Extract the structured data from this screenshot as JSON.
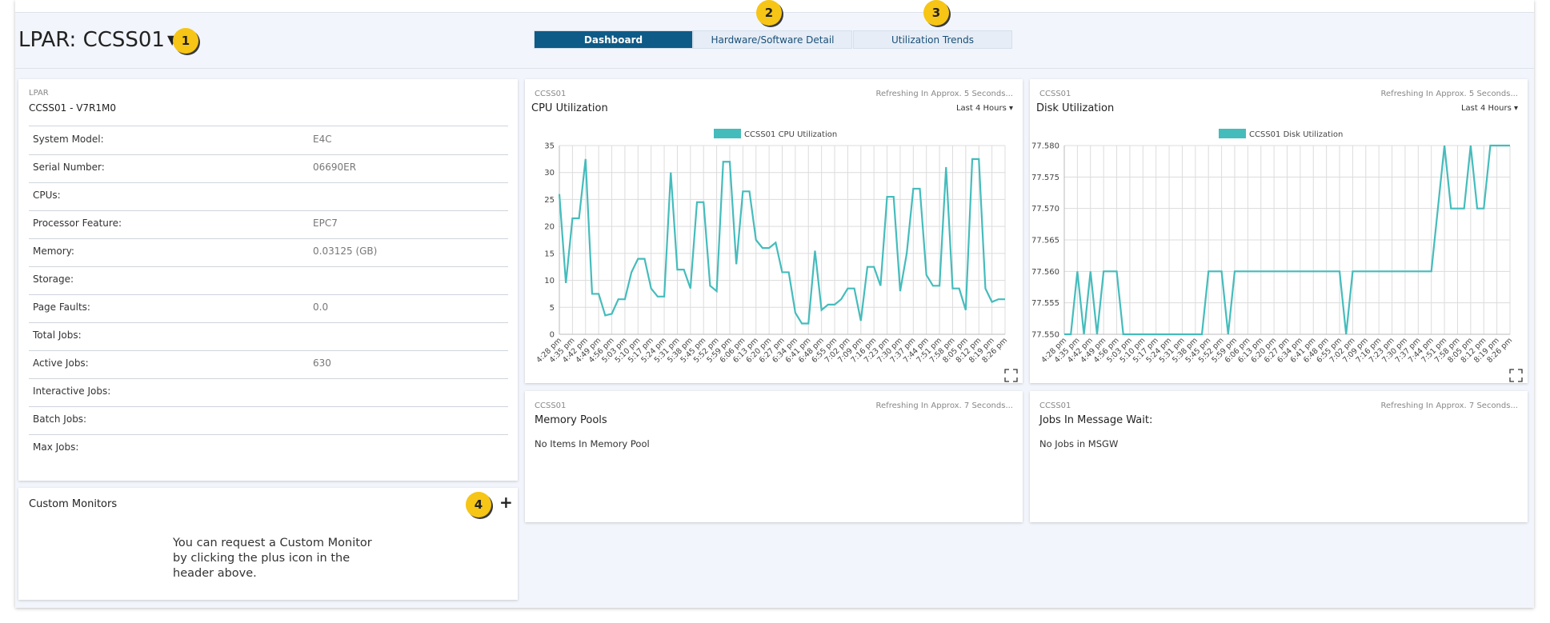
{
  "header": {
    "title": "LPAR: CCSS01",
    "tabs": [
      "Dashboard",
      "Hardware/Software Detail",
      "Utilization Trends"
    ],
    "callouts": [
      "1",
      "2",
      "3",
      "4"
    ]
  },
  "lpar": {
    "label": "LPAR",
    "name": "CCSS01 - V7R1M0",
    "rows": [
      {
        "label": "System Model:",
        "value": "E4C"
      },
      {
        "label": "Serial Number:",
        "value": "06690ER"
      },
      {
        "label": "CPUs:"
      },
      {
        "label": "Processor Feature:",
        "value": "EPC7"
      },
      {
        "label": "Memory:",
        "value": "0.03125 (GB)"
      },
      {
        "label": "Storage:"
      },
      {
        "label": "Page Faults:",
        "value": "0.0"
      },
      {
        "label": "Total Jobs:"
      },
      {
        "label": "Active Jobs:",
        "value": 630
      },
      {
        "label": "Interactive Jobs:"
      },
      {
        "label": "Batch Jobs:"
      },
      {
        "label": "Max Jobs:"
      }
    ]
  },
  "custom": {
    "title": "Custom Monitors",
    "lines": [
      "You can request a Custom Monitor",
      "by clicking the plus icon in the",
      "header above."
    ]
  },
  "cards": [
    {
      "system": "CCSS01",
      "refresh": "Refreshing In Approx. 5 Seconds...",
      "range": "Last 4 Hours"
    },
    {
      "system": "CCSS01",
      "refresh": "Refreshing In Approx. 5 Seconds...",
      "range": "Last 4 Hours"
    },
    {
      "system": "CCSS01",
      "refresh": "Refreshing In Approx. 7 Seconds...",
      "title": "Memory Pools",
      "message": "No Items In Memory Pool"
    },
    {
      "system": "CCSS01",
      "refresh": "Refreshing In Approx. 7 Seconds...",
      "title": "Jobs In Message Wait:",
      "message": "No Jobs in MSGW"
    }
  ],
  "chart_data": [
    {
      "type": "line",
      "title": "CPU Utilization",
      "categories": [
        "4:28 pm",
        null,
        "4:35 pm",
        null,
        "4:42 pm",
        null,
        "4:49 pm",
        null,
        "4:56 pm",
        null,
        "5:03 pm",
        null,
        "5:10 pm",
        null,
        "5:17 pm",
        null,
        "5:24 pm",
        null,
        "5:31 pm",
        null,
        "5:38 pm",
        null,
        "5:45 pm",
        null,
        "5:52 pm",
        null,
        "5:59 pm",
        null,
        "6:06 pm",
        null,
        "6:13 pm",
        null,
        "6:20 pm",
        null,
        "6:27 pm",
        null,
        "6:34 pm",
        null,
        "6:41 pm",
        null,
        "6:48 pm",
        null,
        "6:55 pm",
        null,
        "7:02 pm",
        null,
        "7:09 pm",
        null,
        "7:16 pm",
        null,
        "7:23 pm",
        null,
        "7:30 pm",
        null,
        "7:37 pm",
        null,
        "7:44 pm",
        null,
        "7:51 pm",
        null,
        "7:58 pm",
        null,
        "8:05 pm",
        null,
        "8:12 pm",
        null,
        "8:19 pm",
        null,
        "8:26 pm"
      ],
      "series": [
        {
          "name": "CCSS01 CPU Utilization",
          "color": "#45bcbc",
          "values": [
            26,
            9.5,
            21.5,
            21.5,
            32.5,
            7.5,
            7.5,
            3.5,
            3.8,
            6.5,
            6.5,
            11.5,
            14,
            14,
            8.5,
            7,
            7,
            30,
            12,
            12,
            8.5,
            24.5,
            24.5,
            9,
            8,
            32,
            32,
            13,
            26.5,
            26.5,
            17.5,
            16,
            16,
            17,
            11.5,
            11.5,
            4,
            2,
            2,
            15.5,
            4.5,
            5.5,
            5.5,
            6.5,
            8.5,
            8.5,
            2.5,
            12.5,
            12.5,
            9,
            25.5,
            25.5,
            8,
            15,
            27,
            27,
            11,
            9,
            9,
            31,
            8.5,
            8.5,
            4.5,
            32.5,
            32.5,
            8.5,
            6,
            6.5,
            6.5
          ]
        }
      ],
      "ylim": [
        0,
        35
      ],
      "yticks": [
        0,
        5,
        10,
        15,
        20,
        25,
        30,
        35
      ],
      "grid": true
    },
    {
      "type": "line",
      "title": "Disk Utilization",
      "categories": [
        "4:28 pm",
        null,
        "4:35 pm",
        null,
        "4:42 pm",
        null,
        "4:49 pm",
        null,
        "4:56 pm",
        null,
        "5:03 pm",
        null,
        "5:10 pm",
        null,
        "5:17 pm",
        null,
        "5:24 pm",
        null,
        "5:31 pm",
        null,
        "5:38 pm",
        null,
        "5:45 pm",
        null,
        "5:52 pm",
        null,
        "5:59 pm",
        null,
        "6:06 pm",
        null,
        "6:13 pm",
        null,
        "6:20 pm",
        null,
        "6:27 pm",
        null,
        "6:34 pm",
        null,
        "6:41 pm",
        null,
        "6:48 pm",
        null,
        "6:55 pm",
        null,
        "7:02 pm",
        null,
        "7:09 pm",
        null,
        "7:16 pm",
        null,
        "7:23 pm",
        null,
        "7:30 pm",
        null,
        "7:37 pm",
        null,
        "7:44 pm",
        null,
        "7:51 pm",
        null,
        "7:58 pm",
        null,
        "8:05 pm",
        null,
        "8:12 pm",
        null,
        "8:19 pm",
        null,
        "8:26 pm"
      ],
      "series": [
        {
          "name": "CCSS01 Disk Utilization",
          "color": "#45bcbc",
          "values": [
            77.55,
            77.55,
            77.56,
            77.55,
            77.56,
            77.55,
            77.56,
            77.56,
            77.56,
            77.55,
            77.55,
            77.55,
            77.55,
            77.55,
            77.55,
            77.55,
            77.55,
            77.55,
            77.55,
            77.55,
            77.55,
            77.55,
            77.56,
            77.56,
            77.56,
            77.55,
            77.56,
            77.56,
            77.56,
            77.56,
            77.56,
            77.56,
            77.56,
            77.56,
            77.56,
            77.56,
            77.56,
            77.56,
            77.56,
            77.56,
            77.56,
            77.56,
            77.56,
            77.55,
            77.56,
            77.56,
            77.56,
            77.56,
            77.56,
            77.56,
            77.56,
            77.56,
            77.56,
            77.56,
            77.56,
            77.56,
            77.56,
            77.57,
            77.58,
            77.57,
            77.57,
            77.57,
            77.58,
            77.57,
            77.57,
            77.58,
            77.58,
            77.58,
            77.58
          ]
        }
      ],
      "ylim": [
        77.55,
        77.58
      ],
      "yticks": [
        {
          "value": 77.55,
          "label": "77.550"
        },
        77.555,
        {
          "value": 77.56,
          "label": "77.560"
        },
        77.565,
        {
          "value": 77.57,
          "label": "77.570"
        },
        77.575,
        {
          "value": 77.58,
          "label": "77.580"
        }
      ],
      "grid": true
    }
  ]
}
